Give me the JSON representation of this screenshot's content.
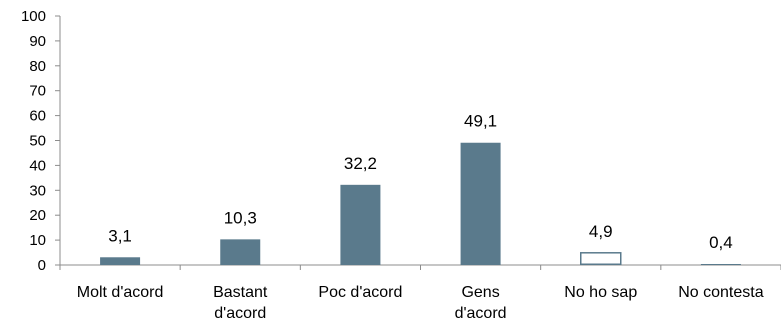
{
  "chart_data": {
    "type": "bar",
    "categories": [
      [
        "Molt d'acord"
      ],
      [
        "Bastant",
        "d'acord"
      ],
      [
        "Poc d'acord"
      ],
      [
        "Gens",
        "d'acord"
      ],
      [
        "No ho sap"
      ],
      [
        "No contesta"
      ]
    ],
    "values": [
      3.1,
      10.3,
      32.2,
      49.1,
      4.9,
      0.4
    ],
    "value_labels": [
      "3,1",
      "10,3",
      "32,2",
      "49,1",
      "4,9",
      "0,4"
    ],
    "bar_styles": [
      "solid",
      "solid",
      "solid",
      "solid",
      "outline",
      "solid"
    ],
    "ylim": [
      0,
      100
    ],
    "yticks": [
      0,
      10,
      20,
      30,
      40,
      50,
      60,
      70,
      80,
      90,
      100
    ],
    "title": "",
    "xlabel": "",
    "ylabel": "",
    "grid": false,
    "legend": "none"
  },
  "colors": {
    "bar": "#5a7a8c",
    "outline_fill": "#ffffff",
    "axis": "#8c8c8c"
  }
}
